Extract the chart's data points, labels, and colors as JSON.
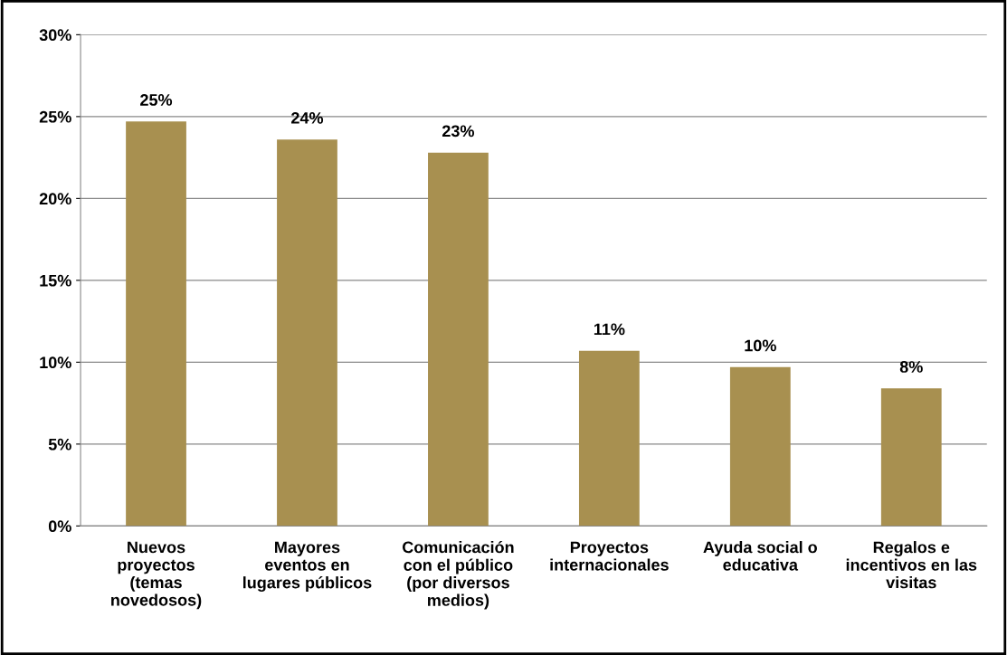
{
  "chart_data": {
    "type": "bar",
    "categories": [
      "Nuevos\nproyectos\n(temas\nnovedosos)",
      "Mayores\neventos en\nlugares públicos",
      "Comunicación\ncon el público\n(por diversos\nmedios)",
      "Proyectos\ninternacionales",
      "Ayuda social o\neducativa",
      "Regalos e\nincentivos en las\nvisitas"
    ],
    "values": [
      24.7,
      23.6,
      22.8,
      10.7,
      9.7,
      8.4
    ],
    "value_labels": [
      "25%",
      "24%",
      "23%",
      "11%",
      "10%",
      "8%"
    ],
    "color": "#a89050",
    "ylim": [
      0,
      30
    ],
    "yticks": [
      {
        "value": 0,
        "label": "0%"
      },
      {
        "value": 5,
        "label": "5%"
      },
      {
        "value": 10,
        "label": "10%"
      },
      {
        "value": 15,
        "label": "15%"
      },
      {
        "value": 20,
        "label": "20%"
      },
      {
        "value": 25,
        "label": "25%"
      },
      {
        "value": 30,
        "label": "30%"
      }
    ],
    "grid": "y",
    "legend": false
  }
}
